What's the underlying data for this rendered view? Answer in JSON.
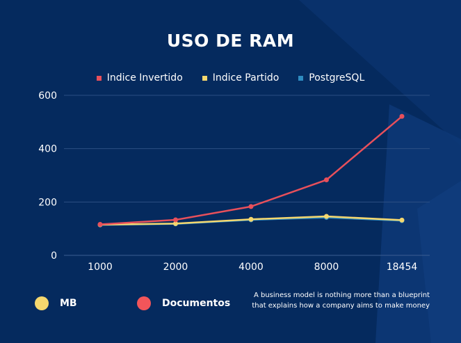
{
  "page_title": "USO DE RAM",
  "chart_data": {
    "type": "line",
    "title": "USO DE RAM",
    "categories": [
      "1000",
      "2000",
      "4000",
      "8000",
      "18454"
    ],
    "series": [
      {
        "name": "Indice Invertido",
        "color": "#e8505b",
        "values": [
          116,
          133,
          183,
          283,
          521
        ]
      },
      {
        "name": "Indice Partido",
        "color": "#f5d76e",
        "values": [
          115,
          119,
          135,
          146,
          132
        ]
      },
      {
        "name": "PostgreSQL",
        "color": "#2e8bc0",
        "values": [
          114,
          118,
          133,
          142,
          130
        ]
      }
    ],
    "ylim": [
      0,
      600
    ],
    "yticks": [
      0,
      200,
      400,
      600
    ],
    "grid": true,
    "legend_position": "top"
  },
  "footer": {
    "items": [
      {
        "label": "MB",
        "color": "#f5d76e"
      },
      {
        "label": "Documentos",
        "color": "#f2555a"
      }
    ],
    "note_line1": "A business model is nothing more than a blueprint",
    "note_line2": "that explains how a company aims to make money"
  },
  "colors": {
    "background": "#052a5e",
    "grid": "#2c4f84"
  }
}
